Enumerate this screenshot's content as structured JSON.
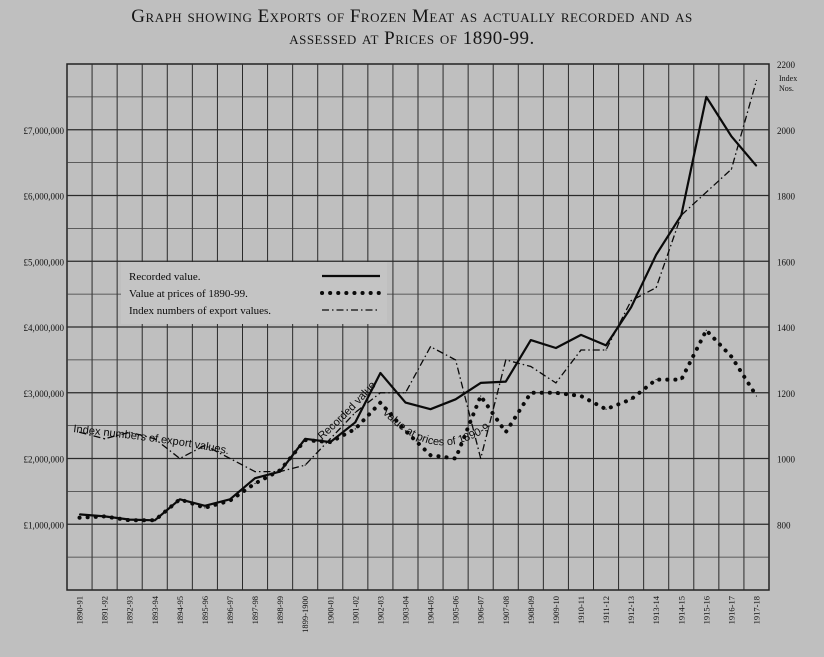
{
  "title_line1": "Graph showing Exports of Frozen Meat as actually recorded and as",
  "title_line2": "assessed at Prices of 1890-99.",
  "chart_data": {
    "type": "line",
    "title": "Graph showing Exports of Frozen Meat as actually recorded and as assessed at Prices of 1890-99.",
    "categories": [
      "1890-91",
      "1891-92",
      "1892-93",
      "1893-94",
      "1894-95",
      "1895-96",
      "1896-97",
      "1897-98",
      "1898-99",
      "1899-1900",
      "1900-01",
      "1901-02",
      "1902-03",
      "1903-04",
      "1904-05",
      "1905-06",
      "1906-07",
      "1907-08",
      "1908-09",
      "1909-10",
      "1910-11",
      "1911-12",
      "1912-13",
      "1913-14",
      "1914-15",
      "1915-16",
      "1916-17",
      "1917-18"
    ],
    "y_left": {
      "ylim": [
        0,
        8000000
      ],
      "ticks": [
        1000000,
        2000000,
        3000000,
        4000000,
        5000000,
        6000000,
        7000000
      ],
      "tick_labels": [
        "£1,000,000",
        "£2,000,000",
        "£3,000,000",
        "£4,000,000",
        "£5,000,000",
        "£6,000,000",
        "£7,000,000"
      ]
    },
    "y_right": {
      "label": "Index Nos.",
      "ylim": [
        600,
        2200
      ],
      "ticks": [
        800,
        1000,
        1200,
        1400,
        1600,
        1800,
        2000,
        2200
      ],
      "tick_labels": [
        "800",
        "1000",
        "1200",
        "1400",
        "1600",
        "1800",
        "2000",
        "2200"
      ]
    },
    "grid": true,
    "legend_position": "upper-left",
    "series": [
      {
        "name": "Recorded value.",
        "axis": "left",
        "style": "solid",
        "values": [
          1150000,
          1120000,
          1070000,
          1060000,
          1380000,
          1280000,
          1380000,
          1700000,
          1800000,
          2300000,
          2250000,
          2550000,
          3300000,
          2850000,
          2750000,
          2900000,
          3150000,
          3170000,
          3800000,
          3680000,
          3880000,
          3720000,
          4300000,
          5100000,
          5700000,
          7500000,
          6900000,
          6450000
        ]
      },
      {
        "name": "Value at prices of 1890-99.",
        "axis": "left",
        "style": "dotted",
        "values": [
          1100000,
          1120000,
          1060000,
          1060000,
          1380000,
          1250000,
          1360000,
          1620000,
          1820000,
          2280000,
          2250000,
          2450000,
          2850000,
          2420000,
          2050000,
          2000000,
          2950000,
          2400000,
          3000000,
          3000000,
          2950000,
          2750000,
          2900000,
          3200000,
          3200000,
          3950000,
          3550000,
          2950000
        ]
      },
      {
        "name": "Index numbers of export values.",
        "axis": "right",
        "style": "dash-dot",
        "values": [
          1080,
          1060,
          1080,
          1060,
          1000,
          1040,
          1000,
          960,
          960,
          980,
          1060,
          1140,
          1200,
          1200,
          1340,
          1300,
          1000,
          1300,
          1280,
          1230,
          1330,
          1330,
          1480,
          1520,
          1740,
          1810,
          1880,
          2150
        ]
      }
    ],
    "annotations": [
      {
        "text": "Index numbers of export values.",
        "series": "Index numbers of export values."
      },
      {
        "text": "Recorded value",
        "series": "Recorded value."
      },
      {
        "text": "Value at prices of 1890-99",
        "series": "Value at prices of 1890-99."
      }
    ]
  }
}
